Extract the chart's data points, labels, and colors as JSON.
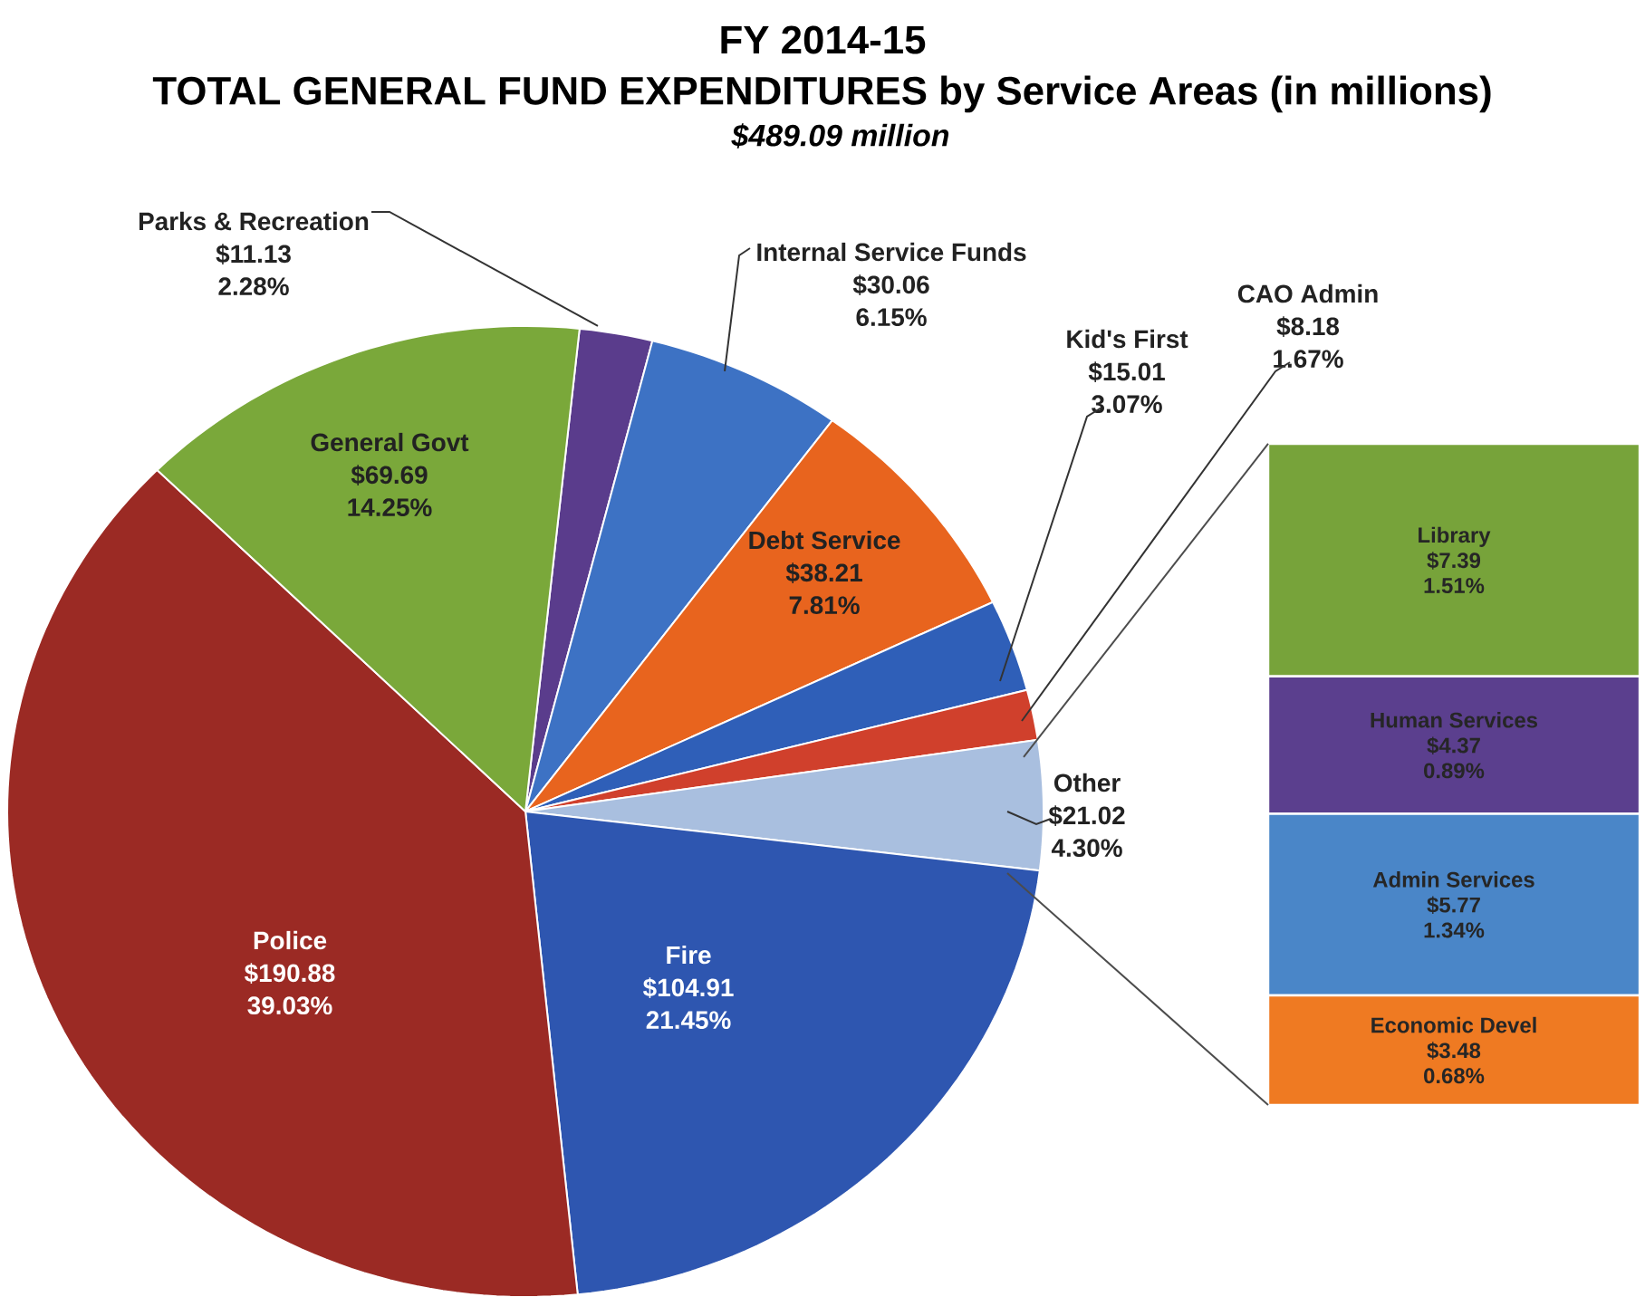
{
  "chart_data": [
    {
      "type": "pie",
      "title": "FY 2014-15",
      "subtitle": "TOTAL GENERAL FUND EXPENDITURES by Service Areas (in millions)",
      "categories": [
        "Parks & Recreation",
        "Internal Service Funds",
        "Debt Service",
        "Kid's First",
        "CAO Admin",
        "Other",
        "Fire",
        "Police",
        "General Govt"
      ],
      "values": [
        11.13,
        30.06,
        38.21,
        15.01,
        8.18,
        21.02,
        104.91,
        190.88,
        69.69
      ],
      "colors": [
        "#5a3c8c",
        "#3d72c4",
        "#e8641e",
        "#2f5fb8",
        "#d0402c",
        "#a9bfdf",
        "#2e56b0",
        "#9b2a24",
        "#7aa83a"
      ],
      "value_labels": [
        "$11.13",
        "$30.06",
        "$38.21",
        "$15.01",
        "$8.18",
        "$21.02",
        "$104.91",
        "$190.88",
        "$69.69"
      ],
      "annotations": [
        "$489.09 million",
        "2.28%",
        "6.15%",
        "7.81%",
        "3.07%",
        "1.67%",
        "4.30%",
        "21.45%",
        "39.03%",
        "14.25%"
      ]
    },
    {
      "type": "bar",
      "stacked": true,
      "categories": [
        null
      ],
      "tick_labels": false,
      "series": [
        {
          "name": "Economic Devel",
          "color": "#ef7a22",
          "values": [
            3.48
          ],
          "value_labels": [
            "$3.48"
          ]
        },
        {
          "name": "Admin Services",
          "color": "#4a86c8",
          "values": [
            5.77
          ],
          "value_labels": [
            "$5.77"
          ]
        },
        {
          "name": "Human Services",
          "color": "#5b3f8e",
          "values": [
            4.37
          ],
          "value_labels": [
            "$4.37"
          ]
        },
        {
          "name": "Library",
          "color": "#77a33a",
          "values": [
            7.39
          ],
          "value_labels": [
            "$7.39"
          ]
        }
      ],
      "annotations": [
        "0.68%",
        "1.34%",
        "0.89%",
        "1.51%"
      ]
    }
  ]
}
